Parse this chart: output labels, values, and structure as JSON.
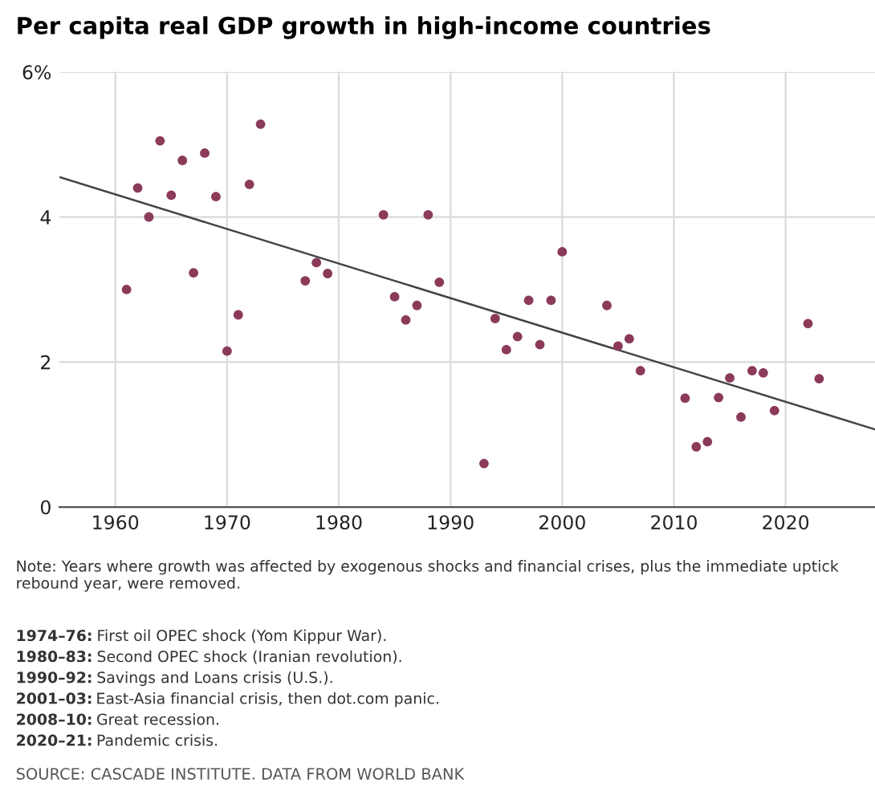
{
  "chart_data": {
    "type": "scatter",
    "title": "Per capita real GDP growth in high-income countries",
    "series": [
      {
        "color": "#8b3a5a",
        "marker": "circle",
        "x": [
          1961,
          1962,
          1963,
          1964,
          1965,
          1966,
          1967,
          1968,
          1969,
          1970,
          1971,
          1972,
          1973,
          1977,
          1978,
          1979,
          1984,
          1985,
          1986,
          1987,
          1988,
          1989,
          1993,
          1994,
          1995,
          1996,
          1997,
          1998,
          1999,
          2000,
          2004,
          2005,
          2006,
          2007,
          2011,
          2012,
          2013,
          2014,
          2015,
          2016,
          2017,
          2018,
          2019,
          2022,
          2023
        ],
        "values": [
          3.0,
          4.4,
          4.0,
          5.05,
          4.3,
          4.78,
          3.23,
          4.88,
          4.28,
          2.15,
          2.65,
          4.45,
          5.28,
          3.12,
          3.37,
          3.22,
          4.03,
          2.9,
          2.58,
          2.78,
          4.03,
          3.1,
          0.6,
          2.6,
          2.17,
          2.35,
          2.85,
          2.24,
          2.85,
          3.52,
          2.78,
          2.22,
          2.32,
          1.88,
          1.5,
          0.83,
          0.9,
          1.51,
          1.78,
          1.24,
          1.88,
          1.85,
          1.33,
          2.53,
          1.77
        ]
      },
      {
        "type": "line",
        "color": "#444444",
        "x": [
          1955,
          2028
        ],
        "values": [
          4.55,
          1.07
        ]
      }
    ],
    "xlim": [
      1955,
      2028
    ],
    "xticks": [
      1960,
      1970,
      1980,
      1990,
      2000,
      2010,
      2020
    ],
    "ylim": [
      0,
      6
    ],
    "yticks": [
      0,
      2,
      4,
      {
        "value": 6,
        "label": "6%"
      }
    ],
    "grid": true,
    "annotations": [
      "Note: Years where growth was affected by exogenous shocks and financial crises, plus the immediate uptick rebound year, were removed.",
      "1974–76: First oil OPEC shock (Yom Kippur War).",
      "1980–83: Second OPEC shock (Iranian revolution).",
      "1990–92: Savings and Loans crisis (U.S.).",
      "2001–03: East-Asia financial crisis, then dot.com panic.",
      "2008–10: Great recession.",
      "2020–21: Pandemic crisis.",
      "SOURCE: CASCADE INSTITUTE. DATA FROM WORLD BANK"
    ]
  }
}
